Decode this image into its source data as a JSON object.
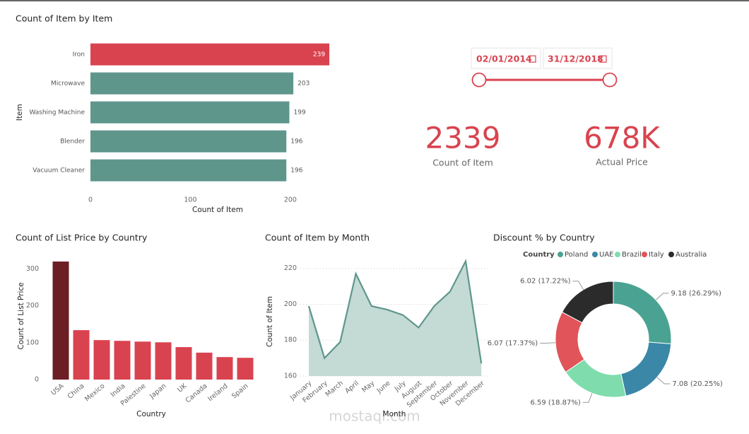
{
  "chart_data": [
    {
      "type": "hbar",
      "title": "Count of Item by Item",
      "x_label": "Count of Item",
      "y_label": "Item",
      "categories": [
        "Iron",
        "Microwave",
        "Washing Machine",
        "Blender",
        "Vacuum Cleaner"
      ],
      "values": [
        239,
        203,
        199,
        196,
        196
      ],
      "colors": [
        "#d9434f",
        "#5f968c",
        "#5f968c",
        "#5f968c",
        "#5f968c"
      ],
      "xlim": [
        0,
        240
      ],
      "xticks": [
        0,
        100,
        200
      ]
    },
    {
      "type": "bar",
      "title": "Count of List Price by Country",
      "x_label": "Country",
      "y_label": "Count of List Price",
      "categories": [
        "USA",
        "China",
        "Mexico",
        "India",
        "Palestine",
        "Japan",
        "UK",
        "Canada",
        "Ireland",
        "Spain"
      ],
      "values": [
        320,
        134,
        107,
        105,
        103,
        101,
        88,
        73,
        61,
        59
      ],
      "colors": [
        "#6b1f25",
        "#d9434f",
        "#d9434f",
        "#d9434f",
        "#d9434f",
        "#d9434f",
        "#d9434f",
        "#d9434f",
        "#d9434f",
        "#d9434f"
      ],
      "ylim": [
        0,
        320
      ],
      "yticks": [
        0,
        100,
        200,
        300
      ]
    },
    {
      "type": "area",
      "title": "Count of Item by Month",
      "x_label": "Month",
      "y_label": "Count of Item",
      "categories": [
        "January",
        "February",
        "March",
        "April",
        "May",
        "June",
        "July",
        "August",
        "September",
        "October",
        "November",
        "December"
      ],
      "values": [
        199,
        170,
        179,
        217,
        199,
        197,
        194,
        187,
        199,
        207,
        224,
        167
      ],
      "color": "#5f968c",
      "fill": "#c4dad5",
      "ylim": [
        160,
        225
      ],
      "yticks": [
        160,
        180,
        200,
        220
      ],
      "grid": true
    },
    {
      "type": "donut",
      "title": "Discount % by Country",
      "legend_title": "Country",
      "categories": [
        "Poland",
        "UAE",
        "Brazil",
        "Italy",
        "Australia"
      ],
      "values": [
        9.18,
        7.08,
        6.59,
        6.07,
        6.02
      ],
      "value_labels": [
        "9.18 (26.29%)",
        "7.08 (20.25%)",
        "6.59 (18.87%)",
        "6.07 (17.37%)",
        "6.02 (17.22%)"
      ],
      "colors": [
        "#4aa392",
        "#3a87a8",
        "#7fdcac",
        "#e0545a",
        "#2b2b2b"
      ]
    }
  ],
  "slicer": {
    "start": "02/01/2014",
    "end": "31/12/2018"
  },
  "cards": [
    {
      "value": "2339",
      "label": "Count of Item"
    },
    {
      "value": "678K",
      "label": "Actual Price"
    }
  ],
  "watermark": "mostaql.com"
}
